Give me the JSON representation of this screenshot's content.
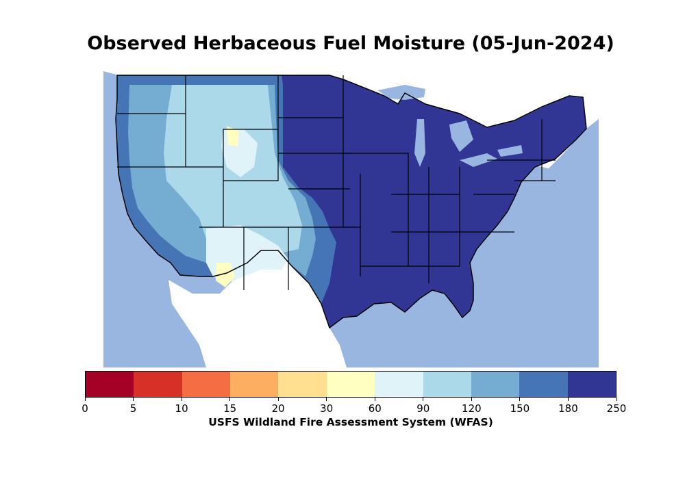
{
  "title": "Observed Herbaceous Fuel Moisture (05-Jun-2024)",
  "colorbar": {
    "label": "USFS Wildland Fire Assessment System (WFAS)",
    "ticks": [
      "0",
      "5",
      "10",
      "15",
      "20",
      "30",
      "60",
      "90",
      "120",
      "150",
      "180",
      "250"
    ],
    "colors": [
      "#a50026",
      "#d73027",
      "#f46d43",
      "#fdae61",
      "#fee090",
      "#ffffbf",
      "#e0f3f8",
      "#abd9e9",
      "#74add1",
      "#4575b4",
      "#313695"
    ]
  },
  "map": {
    "water_color": "#98b6e0",
    "land_outside_color": "#ffffff",
    "border_color": "#000000"
  }
}
